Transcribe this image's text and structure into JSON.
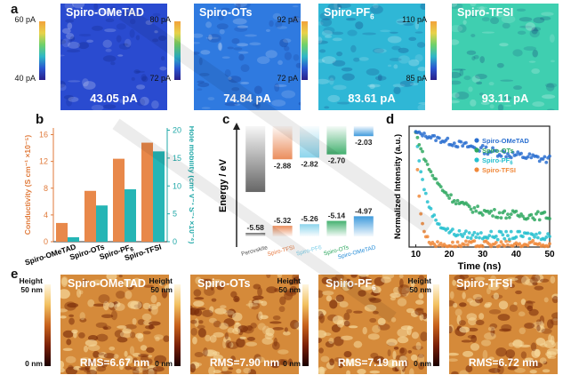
{
  "panels": {
    "a": "a",
    "b": "b",
    "c": "c",
    "d": "d",
    "e": "e"
  },
  "kpfm": [
    {
      "title": "Spiro-OMeTAD",
      "title_sub": "",
      "value": "43.05 pA",
      "cb_top": "60 pA",
      "cb_bot": "40 pA",
      "color": "#2a4bd0"
    },
    {
      "title": "Spiro-OTs",
      "title_sub": "",
      "value": "74.84 pA",
      "cb_top": "80 pA",
      "cb_bot": "72 pA",
      "color": "#2f7ae0"
    },
    {
      "title": "Spiro-PF",
      "title_sub": "6",
      "value": "83.61 pA",
      "cb_top": "92 pA",
      "cb_bot": "72 pA",
      "color": "#2fb7d6"
    },
    {
      "title": "Spiro-TFSI",
      "title_sub": "",
      "value": "93.11 pA",
      "cb_top": "110 pA",
      "cb_bot": "85 pA",
      "color": "#3fcfb0"
    }
  ],
  "chart_data": [
    {
      "type": "bar",
      "categories": [
        "Spiro-OMeTAD",
        "Spiro-OTs",
        "Spiro-PF6",
        "Spiro-TFSI"
      ],
      "category_labels": [
        {
          "main": "Spiro-OMeTAD",
          "sub": ""
        },
        {
          "main": "Spiro-OTs",
          "sub": ""
        },
        {
          "main": "Spiro-PF",
          "sub": "6"
        },
        {
          "main": "Spiro-TFSI",
          "sub": ""
        }
      ],
      "series": [
        {
          "name": "Conductivity",
          "values": [
            2.8,
            7.6,
            12.4,
            14.8
          ],
          "axis": "left",
          "color": "#e8884a"
        },
        {
          "name": "Hole mobility",
          "values": [
            0.8,
            6.5,
            9.4,
            16.2
          ],
          "axis": "right",
          "color": "#25b5b5"
        }
      ],
      "ylabel": "Conductivity (S cm⁻¹ ×10⁻⁵)",
      "ylabel2": "Hole mobility (cm² V⁻¹ S⁻¹ ×10⁻⁴)",
      "ylim": [
        0,
        17
      ],
      "yticks": [
        "0",
        "4",
        "8",
        "12",
        "16"
      ],
      "y2lim": [
        0,
        20.4
      ],
      "y2ticks": [
        "0",
        "5",
        "10",
        "15",
        "20"
      ]
    },
    {
      "type": "bar",
      "ylabel": "Energy / eV",
      "categories": [
        "Perovskite",
        "Spiro-TFSI",
        "Spiro-PF6",
        "Spiro-OTs",
        "Spiro-OMeTAD"
      ],
      "lumo": [
        "-4.08",
        "-2.88",
        "-2.82",
        "-2.70",
        "-2.03"
      ],
      "homo": [
        "-5.58",
        "-5.32",
        "-5.26",
        "-5.14",
        "-4.97"
      ],
      "lumo_values": [
        -4.08,
        -2.88,
        -2.82,
        -2.7,
        -2.03
      ],
      "homo_values": [
        -5.58,
        -5.32,
        -5.26,
        -5.14,
        -4.97
      ],
      "colors": [
        "#555555",
        "#e8804a",
        "#7fd0ea",
        "#2fa860",
        "#2a8fd8"
      ]
    },
    {
      "type": "scatter",
      "xlabel": "Time (ns)",
      "ylabel": "Normalized Intensity (a.u.)",
      "xlim": [
        8,
        50
      ],
      "xticks": [
        "10",
        "20",
        "30",
        "40",
        "50"
      ],
      "series": [
        {
          "name": "Spiro-OMeTAD",
          "color": "#2a6fd0",
          "tau": 40,
          "floor": 0.62
        },
        {
          "name": "Spiro-OTs",
          "color": "#2fa860",
          "tau": 7,
          "floor": 0.27
        },
        {
          "name": "Spiro-PF6",
          "color": "#25c0cf",
          "tau": 3.2,
          "floor": 0.1
        },
        {
          "name": "Spiro-TFSI",
          "color": "#f0883a",
          "tau": 1.2,
          "floor": 0.02
        }
      ],
      "legend": [
        {
          "main": "Spiro-OMeTAD",
          "sub": ""
        },
        {
          "main": "Spiro-OTs",
          "sub": ""
        },
        {
          "main": "Spiro-PF",
          "sub": "6"
        },
        {
          "main": "Spiro-TFSI",
          "sub": ""
        }
      ],
      "legend_position": "top-right"
    }
  ],
  "afm": [
    {
      "title": "Spiro-OMeTAD",
      "title_sub": "",
      "rms": "RMS=6.67 nm"
    },
    {
      "title": "Spiro-OTs",
      "title_sub": "",
      "rms": "RMS=7.90 nm"
    },
    {
      "title": "Spiro-PF",
      "title_sub": "6",
      "rms": "RMS=7.19 nm"
    },
    {
      "title": "Spiro-TFSI",
      "title_sub": "",
      "rms": "RMS=6.72 nm"
    }
  ],
  "afm_scale": {
    "label": "Height",
    "top": "50 nm",
    "bottom": "0 nm"
  }
}
